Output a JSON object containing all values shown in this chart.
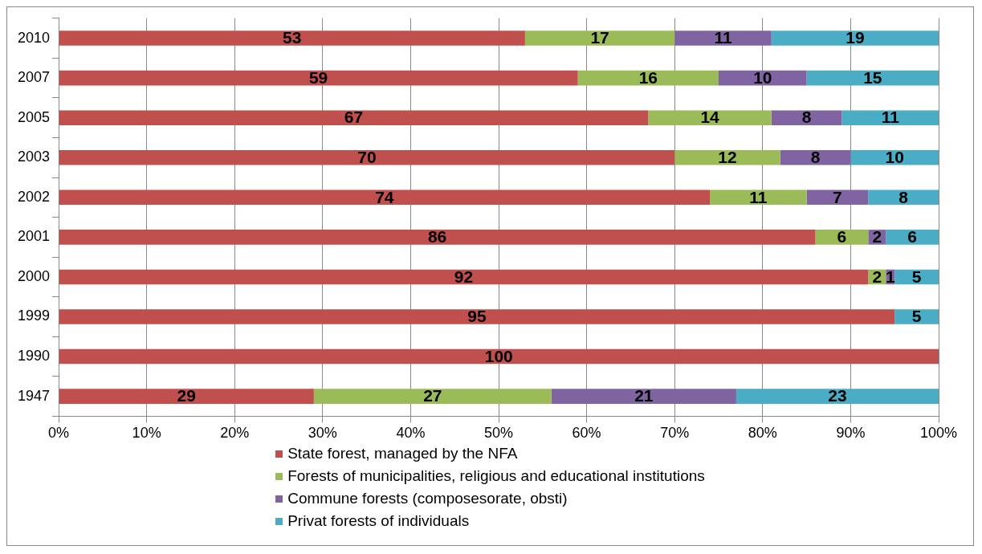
{
  "chart_data": {
    "type": "bar",
    "orientation": "horizontal",
    "stacked": true,
    "categories": [
      "2010",
      "2007",
      "2005",
      "2003",
      "2002",
      "2001",
      "2000",
      "1999",
      "1990",
      "1947"
    ],
    "series": [
      {
        "name": "State forest, managed by the NFA",
        "color": "#c0504d",
        "values": [
          53,
          59,
          67,
          70,
          74,
          86,
          92,
          95,
          100,
          29
        ],
        "value_labels": [
          "53",
          "59",
          "67",
          "70",
          "74",
          "86",
          "92",
          "95",
          "100",
          "29"
        ]
      },
      {
        "name": "Forests of municipalities, religious and educational institutions",
        "color": "#9bbb59",
        "values": [
          17,
          16,
          14,
          12,
          11,
          6,
          2,
          0,
          0,
          27
        ],
        "value_labels": [
          "17",
          "16",
          "14",
          "12",
          "11",
          "6",
          "2",
          null,
          null,
          "27"
        ]
      },
      {
        "name": "Commune forests (composesorate, obsti)",
        "color": "#8064a2",
        "values": [
          11,
          10,
          8,
          8,
          7,
          2,
          1,
          0,
          0,
          21
        ],
        "value_labels": [
          "11",
          "10",
          "8",
          "8",
          "7",
          "2",
          "1",
          null,
          null,
          "21"
        ]
      },
      {
        "name": "Privat forests of individuals",
        "color": "#4bacc6",
        "values": [
          19,
          15,
          11,
          10,
          8,
          6,
          5,
          5,
          0,
          23
        ],
        "value_labels": [
          "19",
          "15",
          "11",
          "10",
          "8",
          "6",
          "5",
          "5",
          null,
          "23"
        ]
      }
    ],
    "xlim": [
      0,
      100
    ],
    "xticks": [
      {
        "value": 0,
        "label": "0%"
      },
      {
        "value": 10,
        "label": "10%"
      },
      {
        "value": 20,
        "label": "20%"
      },
      {
        "value": 30,
        "label": "30%"
      },
      {
        "value": 40,
        "label": "40%"
      },
      {
        "value": 50,
        "label": "50%"
      },
      {
        "value": 60,
        "label": "60%"
      },
      {
        "value": 70,
        "label": "70%"
      },
      {
        "value": 80,
        "label": "80%"
      },
      {
        "value": 90,
        "label": "90%"
      },
      {
        "value": 100,
        "label": "100%"
      }
    ],
    "grid": "x",
    "legend": "bottom"
  }
}
